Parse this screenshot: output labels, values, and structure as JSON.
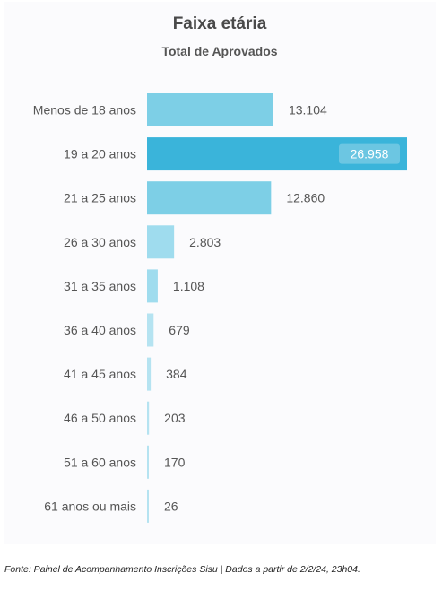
{
  "header": {
    "title": "Faixa etária",
    "subtitle": "Total de Aprovados"
  },
  "chart_data": {
    "type": "bar",
    "orientation": "horizontal",
    "title": "Faixa etária",
    "subtitle": "Total de Aprovados",
    "categories": [
      "Menos de 18 anos",
      "19 a 20 anos",
      "21 a 25 anos",
      "26 a 30 anos",
      "31 a 35 anos",
      "36 a 40 anos",
      "41 a 45 anos",
      "46 a 50 anos",
      "51 a 60 anos",
      "61 anos ou mais"
    ],
    "values": [
      13104,
      26958,
      12860,
      2803,
      1108,
      679,
      384,
      203,
      170,
      26
    ],
    "value_labels": [
      "13.104",
      "26.958",
      "12.860",
      "2.803",
      "1.108",
      "679",
      "384",
      "203",
      "170",
      "26"
    ],
    "xlim": [
      0,
      26958
    ],
    "grid": false,
    "legend": "none",
    "colors": {
      "max_bar": "#3ab4da",
      "high_bar": "#7dcfe6",
      "mid_bar": "#9fdcee",
      "low_bar": "#b5e3f1",
      "value_label_box": "#6cc6e2",
      "category_text": "#555555",
      "value_text": "#555555"
    }
  },
  "footer": {
    "source": "Fonte: Painel de Acompanhamento Inscrições Sisu | Dados a partir de 2/2/24, 23h04."
  }
}
